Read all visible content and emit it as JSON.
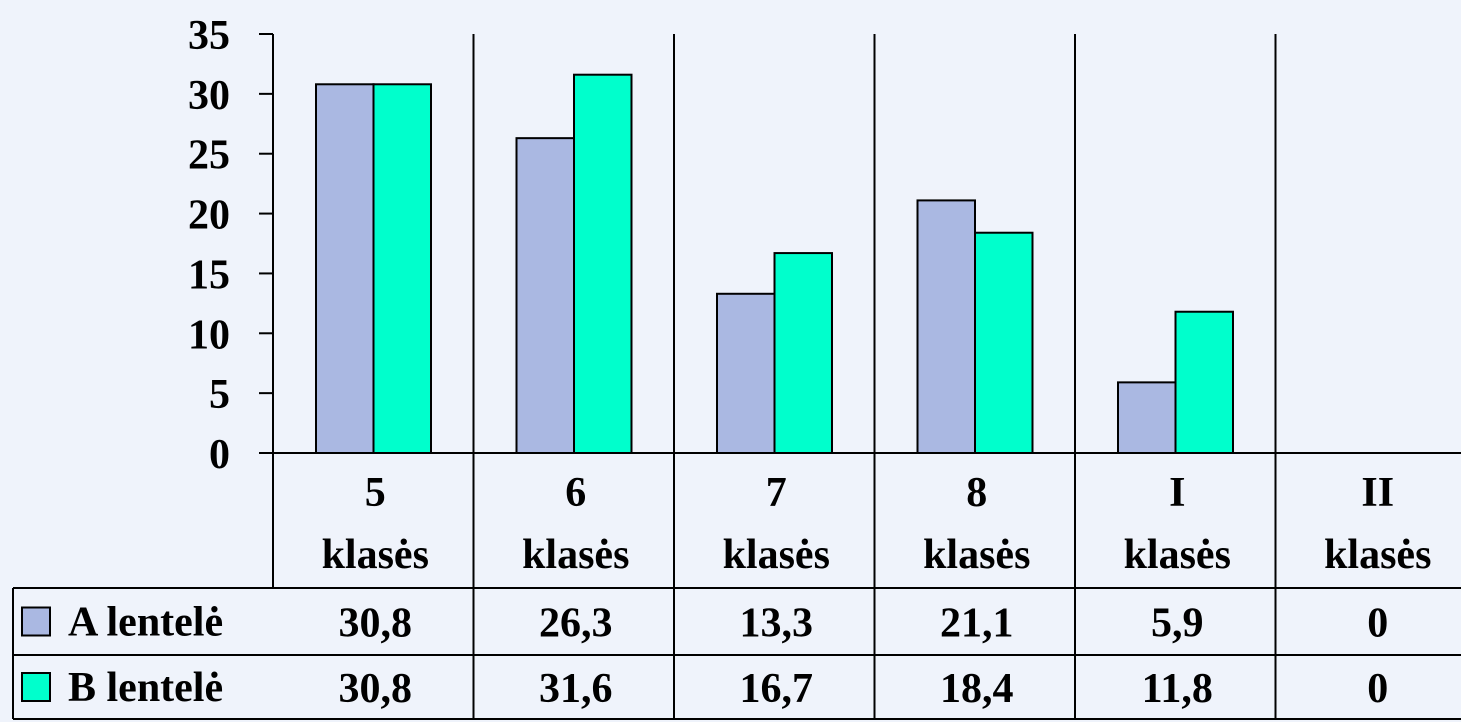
{
  "chart_data": {
    "type": "bar",
    "categories": [
      [
        "5",
        "klasės"
      ],
      [
        "6",
        "klasės"
      ],
      [
        "7",
        "klasės"
      ],
      [
        "8",
        "klasės"
      ],
      [
        "I",
        "klasės"
      ],
      [
        "II",
        "klasės"
      ]
    ],
    "series": [
      {
        "name": "A lentelė",
        "values": [
          30.8,
          26.3,
          13.3,
          21.1,
          5.9,
          0
        ],
        "labels": [
          "30,8",
          "26,3",
          "13,3",
          "21,1",
          "5,9",
          "0"
        ],
        "color": "#aab8e2"
      },
      {
        "name": "B lentelė",
        "values": [
          30.8,
          31.6,
          16.7,
          18.4,
          11.8,
          0
        ],
        "labels": [
          "30,8",
          "31,6",
          "16,7",
          "18,4",
          "11,8",
          "0"
        ],
        "color": "#00ffcc"
      }
    ],
    "ylim": [
      0,
      35
    ],
    "yticks": [
      0,
      5,
      10,
      15,
      20,
      25,
      30,
      35
    ],
    "legend": "data-table",
    "grid": false
  }
}
